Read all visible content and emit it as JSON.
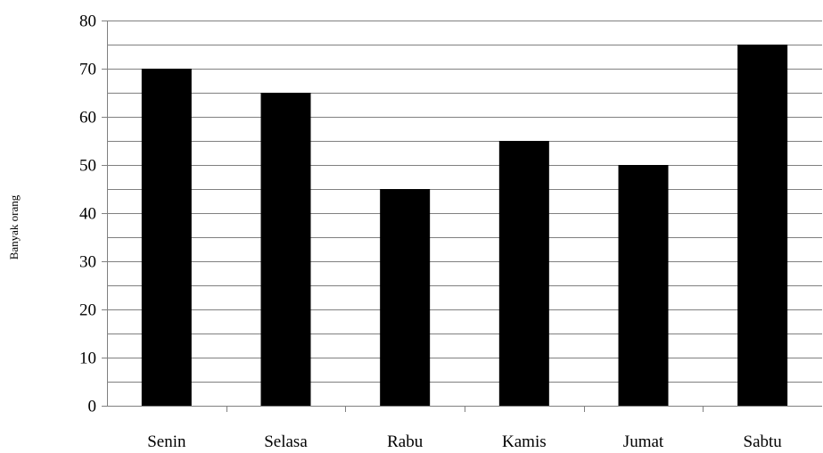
{
  "chart_data": {
    "type": "bar",
    "categories": [
      "Senin",
      "Selasa",
      "Rabu",
      "Kamis",
      "Jumat",
      "Sabtu"
    ],
    "values": [
      70,
      65,
      45,
      55,
      50,
      75
    ],
    "title": "",
    "xlabel": "",
    "ylabel": "Banyak orang",
    "ylim": [
      0,
      80
    ],
    "yticks": [
      0,
      10,
      20,
      30,
      40,
      50,
      60,
      70,
      80
    ],
    "grid": true,
    "legend": "none",
    "colors": {
      "bar": "#000000",
      "grid": "#808080",
      "axis": "#808080"
    }
  }
}
